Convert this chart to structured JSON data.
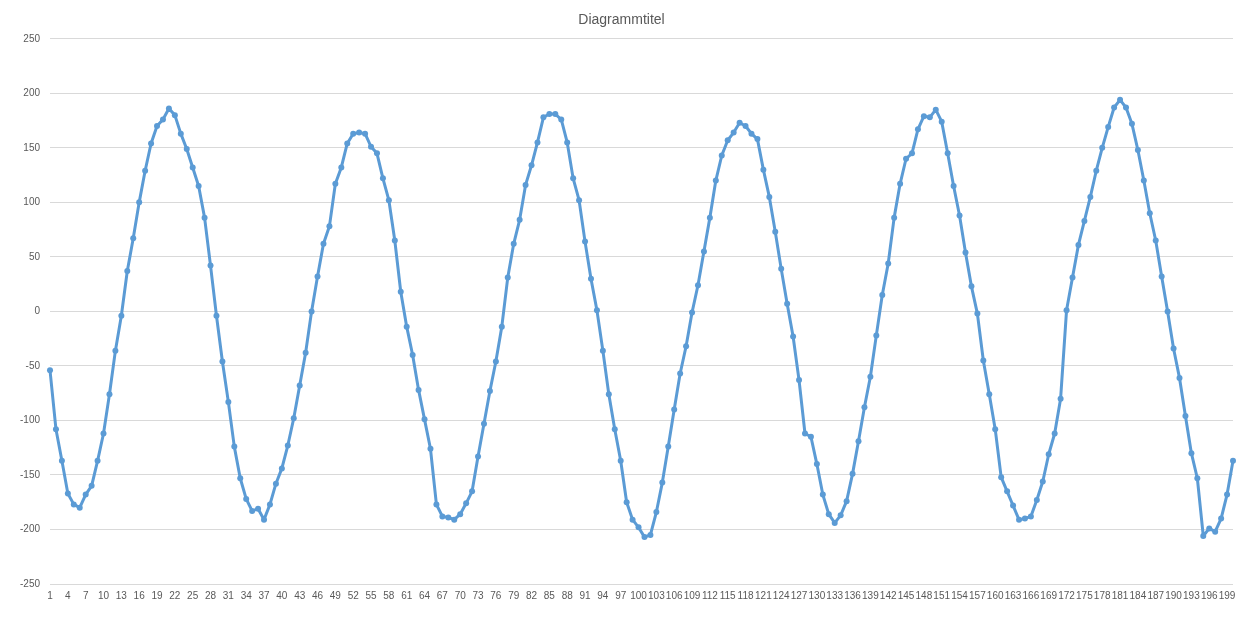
{
  "chart_data": {
    "type": "line",
    "title": "Diagrammtitel",
    "categories": [
      "1",
      null,
      null,
      "4",
      null,
      null,
      "7",
      null,
      null,
      "10",
      null,
      null,
      "13",
      null,
      null,
      "16",
      null,
      null,
      "19",
      null,
      null,
      "22",
      null,
      null,
      "25",
      null,
      null,
      "28",
      null,
      null,
      "31",
      null,
      null,
      "34",
      null,
      null,
      "37",
      null,
      null,
      "40",
      null,
      null,
      "43",
      null,
      null,
      "46",
      null,
      null,
      "49",
      null,
      null,
      "52",
      null,
      null,
      "55",
      null,
      null,
      "58",
      null,
      null,
      "61",
      null,
      null,
      "64",
      null,
      null,
      "67",
      null,
      null,
      "70",
      null,
      null,
      "73",
      null,
      null,
      "76",
      null,
      null,
      "79",
      null,
      null,
      "82",
      null,
      null,
      "85",
      null,
      null,
      "88",
      null,
      null,
      "91",
      null,
      null,
      "94",
      null,
      null,
      "97",
      null,
      null,
      "100",
      null,
      null,
      "103",
      null,
      null,
      "106",
      null,
      null,
      "109",
      null,
      null,
      "112",
      null,
      null,
      "115",
      null,
      null,
      "118",
      null,
      null,
      "121",
      null,
      null,
      "124",
      null,
      null,
      "127",
      null,
      null,
      "130",
      null,
      null,
      "133",
      null,
      null,
      "136",
      null,
      null,
      "139",
      null,
      null,
      "142",
      null,
      null,
      "145",
      null,
      null,
      "148",
      null,
      null,
      "151",
      null,
      null,
      "154",
      null,
      null,
      "157",
      null,
      null,
      "160",
      null,
      null,
      "163",
      null,
      null,
      "166",
      null,
      null,
      "169",
      null,
      null,
      "172",
      null,
      null,
      "175",
      null,
      null,
      "178",
      null,
      null,
      "181",
      null,
      null,
      "184",
      null,
      null,
      "187",
      null,
      null,
      "190",
      null,
      null,
      "193",
      null,
      null,
      "196",
      null,
      null,
      "199",
      null
    ],
    "series": [
      {
        "color": "#5b9bd5",
        "values": [
          -54,
          -108,
          -137,
          -167,
          -177,
          -180,
          -168,
          -160,
          -137,
          -112,
          -76,
          -36,
          -4,
          37,
          67,
          100,
          129,
          154,
          170,
          176,
          186,
          180,
          163,
          149,
          132,
          115,
          86,
          42,
          -4,
          -46,
          -83,
          -124,
          -153,
          -172,
          -183,
          -181,
          -191,
          -177,
          -158,
          -144,
          -123,
          -98,
          -68,
          -38,
          0,
          32,
          62,
          78,
          117,
          132,
          154,
          163,
          164,
          163,
          151,
          145,
          122,
          102,
          65,
          18,
          -14,
          -40,
          -72,
          -99,
          -126,
          -177,
          -188,
          -189,
          -191,
          -186,
          -176,
          -165,
          -133,
          -103,
          -73,
          -46,
          -14,
          31,
          62,
          84,
          116,
          134,
          155,
          178,
          181,
          181,
          176,
          155,
          122,
          102,
          64,
          30,
          1,
          -36,
          -76,
          -108,
          -137,
          -175,
          -191,
          -198,
          -207,
          -205,
          -184,
          -157,
          -124,
          -90,
          -57,
          -32,
          -1,
          24,
          55,
          86,
          120,
          143,
          157,
          164,
          173,
          170,
          163,
          158,
          130,
          105,
          73,
          39,
          7,
          -23,
          -63,
          -112,
          -115,
          -140,
          -168,
          -186,
          -194,
          -187,
          -174,
          -149,
          -119,
          -88,
          -60,
          -22,
          15,
          44,
          86,
          117,
          140,
          145,
          167,
          179,
          178,
          185,
          174,
          145,
          115,
          88,
          54,
          23,
          -2,
          -45,
          -76,
          -108,
          -152,
          -165,
          -178,
          -191,
          -190,
          -188,
          -173,
          -156,
          -131,
          -112,
          -80,
          1,
          31,
          61,
          83,
          105,
          129,
          150,
          169,
          187,
          194,
          187,
          172,
          148,
          120,
          90,
          65,
          32,
          0,
          -34,
          -61,
          -96,
          -130,
          -153,
          -206,
          -199,
          -202,
          -190,
          -168,
          -137
        ]
      }
    ],
    "ylim": [
      -250,
      250
    ],
    "yticks": [
      -250,
      -200,
      -150,
      -100,
      -50,
      0,
      50,
      100,
      150,
      200,
      250
    ],
    "grid": "y",
    "marker": "circle",
    "line_style": "solid",
    "legend": false
  }
}
